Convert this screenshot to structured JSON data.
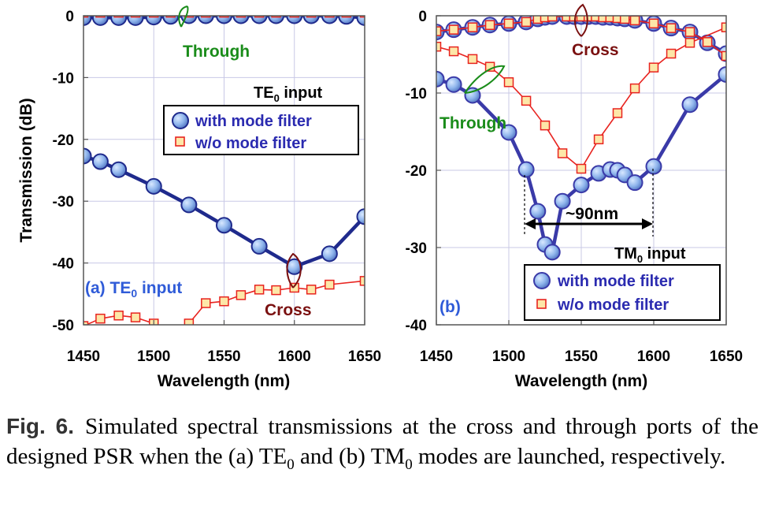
{
  "chart_data": [
    {
      "type": "line",
      "panel": "(a)",
      "panel_label": "(a) TE0 input",
      "input_label": "TE0 input",
      "xlabel": "Wavelength (nm)",
      "ylabel": "Transmission (dB)",
      "xlim": [
        1450,
        1650
      ],
      "ylim": [
        -50,
        0
      ],
      "xticks": [
        1450,
        1500,
        1550,
        1600,
        1650
      ],
      "yticks": [
        0,
        -10,
        -20,
        -30,
        -40,
        -50
      ],
      "grid": true,
      "legend_position": "upper-right",
      "series": [
        {
          "name": "with mode filter",
          "port": "Through",
          "marker": "circle",
          "color": "#1f2a8c",
          "x": [
            1450,
            1462,
            1475,
            1487,
            1500,
            1512,
            1525,
            1537,
            1550,
            1562,
            1575,
            1587,
            1600,
            1612,
            1625,
            1637,
            1650
          ],
          "y": [
            -0.3,
            -0.3,
            -0.3,
            -0.3,
            -0.2,
            -0.1,
            0,
            0,
            0,
            0,
            0,
            0,
            0,
            0,
            0,
            -0.1,
            -0.3
          ]
        },
        {
          "name": "w/o mode filter",
          "port": "Through",
          "marker": "square",
          "color": "#e8231f",
          "x": [
            1450,
            1462,
            1475,
            1487,
            1500,
            1512,
            1525,
            1537,
            1550,
            1562,
            1575,
            1587,
            1600,
            1612,
            1625,
            1637,
            1650
          ],
          "y": [
            0.5,
            0.5,
            0.5,
            0.5,
            0.5,
            0.5,
            0.5,
            0.5,
            0.5,
            0.5,
            0.5,
            0.5,
            0.5,
            0.5,
            0.5,
            0.5,
            0.5
          ]
        },
        {
          "name": "with mode filter",
          "port": "Cross",
          "marker": "circle",
          "color": "#1f2a8c",
          "x": [
            1450,
            1462,
            1475,
            1500,
            1525,
            1550,
            1575,
            1600,
            1625,
            1650
          ],
          "y": [
            -22.7,
            -23.6,
            -24.9,
            -27.6,
            -30.6,
            -33.9,
            -37.3,
            -40.6,
            -38.5,
            -32.5
          ]
        },
        {
          "name": "w/o mode filter",
          "port": "Cross",
          "marker": "square",
          "color": "#e8231f",
          "x": [
            1450,
            1462,
            1475,
            1487,
            1500,
            1512,
            1525,
            1537,
            1550,
            1562,
            1575,
            1587,
            1600,
            1612,
            1625,
            1650
          ],
          "y": [
            -50.2,
            -49.0,
            -48.5,
            -48.8,
            -49.8,
            -53.0,
            -49.8,
            -46.5,
            -46.2,
            -45.2,
            -44.3,
            -44.4,
            -44.0,
            -44.3,
            -43.5,
            -42.9
          ]
        }
      ],
      "annotations": [
        {
          "text": "Through",
          "color": "#1a8c1a"
        },
        {
          "text": "Cross",
          "color": "#7a1010"
        }
      ]
    },
    {
      "type": "line",
      "panel": "(b)",
      "panel_label": "(b)",
      "input_label": "TM0 input",
      "xlabel": "Wavelength (nm)",
      "ylabel": "",
      "xlim": [
        1450,
        1650
      ],
      "ylim": [
        -40,
        0
      ],
      "xticks": [
        1450,
        1500,
        1550,
        1600,
        1650
      ],
      "yticks": [
        0,
        -10,
        -20,
        -30,
        -40
      ],
      "grid": true,
      "legend_position": "lower-right",
      "series": [
        {
          "name": "with mode filter",
          "port": "Cross",
          "marker": "circle",
          "color": "#3a3aa8",
          "x": [
            1450,
            1462,
            1475,
            1487,
            1500,
            1512,
            1520,
            1525,
            1530,
            1540,
            1545,
            1550,
            1555,
            1560,
            1565,
            1570,
            1575,
            1580,
            1587,
            1600,
            1612,
            1625,
            1637,
            1650
          ],
          "y": [
            -2.1,
            -1.8,
            -1.5,
            -1.2,
            -1.0,
            -0.8,
            -0.4,
            -0.2,
            -0.1,
            -0.1,
            -0.1,
            -0.1,
            -0.1,
            -0.1,
            -0.2,
            -0.2,
            -0.3,
            -0.4,
            -0.6,
            -1.0,
            -1.6,
            -2.1,
            -3.5,
            -4.9
          ]
        },
        {
          "name": "w/o mode filter",
          "port": "Cross",
          "marker": "square",
          "color": "#e8231f",
          "x": [
            1450,
            1462,
            1475,
            1487,
            1500,
            1512,
            1520,
            1525,
            1530,
            1540,
            1545,
            1550,
            1555,
            1560,
            1565,
            1570,
            1575,
            1580,
            1587,
            1600,
            1612,
            1625,
            1637,
            1650
          ],
          "y": [
            -2.0,
            -1.8,
            -1.5,
            -1.2,
            -1.0,
            -0.8,
            -0.4,
            -0.2,
            -0.1,
            -0.1,
            -0.1,
            -0.1,
            -0.1,
            -0.1,
            -0.2,
            -0.2,
            -0.3,
            -0.4,
            -0.6,
            -1.0,
            -1.6,
            -2.1,
            -3.4,
            -5.2
          ]
        },
        {
          "name": "with mode filter",
          "port": "Through",
          "marker": "circle",
          "color": "#3a3aa8",
          "x": [
            1450,
            1462,
            1475,
            1500,
            1512,
            1520,
            1525,
            1530,
            1537,
            1550,
            1562,
            1570,
            1575,
            1580,
            1587,
            1600,
            1625,
            1650
          ],
          "y": [
            -8.2,
            -8.9,
            -10.3,
            -15.1,
            -19.9,
            -25.3,
            -29.6,
            -30.6,
            -24.0,
            -21.9,
            -20.4,
            -19.9,
            -20.0,
            -20.6,
            -21.6,
            -19.5,
            -11.5,
            -7.6
          ]
        },
        {
          "name": "w/o mode filter",
          "port": "Through",
          "marker": "square",
          "color": "#e8231f",
          "x": [
            1450,
            1462,
            1475,
            1487,
            1500,
            1512,
            1525,
            1537,
            1550,
            1562,
            1575,
            1587,
            1600,
            1612,
            1625,
            1650
          ],
          "y": [
            -4.0,
            -4.6,
            -5.6,
            -6.6,
            -8.6,
            -11.0,
            -14.2,
            -17.8,
            -19.8,
            -16.0,
            -12.6,
            -9.4,
            -6.7,
            -4.9,
            -3.5,
            -1.5
          ]
        }
      ],
      "annotations": [
        {
          "text": "Cross",
          "color": "#7a1010"
        },
        {
          "text": "Through",
          "color": "#1a8c1a"
        },
        {
          "text": "~90nm",
          "color": "#000000",
          "span": [
            1510,
            1600
          ]
        }
      ]
    }
  ],
  "legend": {
    "with_label": "with mode filter",
    "without_label": "w/o mode filter"
  },
  "caption": {
    "label": "Fig. 6.",
    "text": "Simulated spectral transmissions at the cross and through ports of the designed PSR when the (a) TE0 and (b) TM0 modes are launched, respectively."
  }
}
